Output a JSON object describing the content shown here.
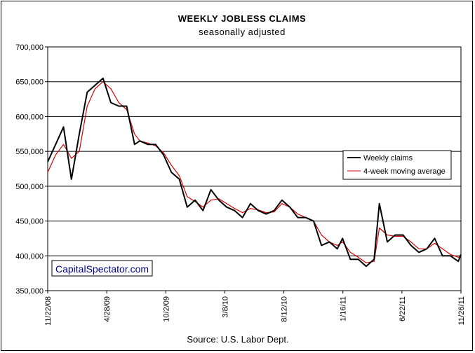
{
  "chart_data": {
    "type": "line",
    "title": "WEEKLY JOBLESS CLAIMS",
    "subtitle": "seasonally adjusted",
    "source": "Source: U.S. Labor Dept.",
    "watermark": "CapitalSpectator.com",
    "ylim": [
      350000,
      700000
    ],
    "y_ticks": [
      "350,000",
      "400,000",
      "450,000",
      "500,000",
      "550,000",
      "600,000",
      "650,000",
      "700,000"
    ],
    "y_tick_values": [
      350000,
      400000,
      450000,
      500000,
      550000,
      600000,
      650000,
      700000
    ],
    "x_range": [
      "2008-11-22",
      "2011-11-26"
    ],
    "x_tick_labels": [
      "11/22/08",
      "4/28/09",
      "10/2/09",
      "3/8/10",
      "8/12/10",
      "1/16/11",
      "6/22/11",
      "11/26/11"
    ],
    "x_tick_dates": [
      "2008-11-22",
      "2009-04-28",
      "2009-10-02",
      "2010-03-08",
      "2010-08-12",
      "2011-01-16",
      "2011-06-22",
      "2011-11-26"
    ],
    "grid": "horizontal",
    "legend_position": "right",
    "series": [
      {
        "name": "Weekly claims",
        "color": "#000000",
        "x": [
          "2008-11-22",
          "2008-12-13",
          "2009-01-03",
          "2009-01-24",
          "2009-02-14",
          "2009-03-07",
          "2009-03-28",
          "2009-04-18",
          "2009-05-09",
          "2009-05-30",
          "2009-06-20",
          "2009-07-11",
          "2009-07-25",
          "2009-08-15",
          "2009-09-05",
          "2009-09-26",
          "2009-10-17",
          "2009-11-07",
          "2009-11-28",
          "2009-12-19",
          "2010-01-09",
          "2010-01-30",
          "2010-02-20",
          "2010-03-13",
          "2010-04-03",
          "2010-04-24",
          "2010-05-15",
          "2010-06-05",
          "2010-06-26",
          "2010-07-17",
          "2010-08-07",
          "2010-08-28",
          "2010-09-18",
          "2010-10-09",
          "2010-10-30",
          "2010-11-20",
          "2010-12-11",
          "2011-01-01",
          "2011-01-15",
          "2011-02-05",
          "2011-02-26",
          "2011-03-19",
          "2011-04-09",
          "2011-04-23",
          "2011-05-14",
          "2011-06-04",
          "2011-06-25",
          "2011-07-16",
          "2011-08-06",
          "2011-08-27",
          "2011-09-17",
          "2011-10-08",
          "2011-10-29",
          "2011-11-19",
          "2011-11-26"
        ],
        "y": [
          535000,
          560000,
          585000,
          510000,
          575000,
          635000,
          645000,
          655000,
          620000,
          615000,
          615000,
          560000,
          565000,
          560000,
          560000,
          545000,
          520000,
          510000,
          470000,
          480000,
          465000,
          495000,
          480000,
          470000,
          465000,
          455000,
          475000,
          465000,
          460000,
          465000,
          480000,
          470000,
          455000,
          455000,
          450000,
          415000,
          420000,
          410000,
          425000,
          395000,
          395000,
          385000,
          395000,
          475000,
          420000,
          430000,
          430000,
          415000,
          405000,
          410000,
          425000,
          400000,
          400000,
          392000,
          402000
        ]
      },
      {
        "name": "4-week moving average",
        "color": "#d40000",
        "x": [
          "2008-11-22",
          "2008-12-13",
          "2009-01-03",
          "2009-01-24",
          "2009-02-14",
          "2009-03-07",
          "2009-03-28",
          "2009-04-18",
          "2009-05-09",
          "2009-05-30",
          "2009-06-20",
          "2009-07-11",
          "2009-07-25",
          "2009-08-15",
          "2009-09-05",
          "2009-09-26",
          "2009-10-17",
          "2009-11-07",
          "2009-11-28",
          "2009-12-19",
          "2010-01-09",
          "2010-01-30",
          "2010-02-20",
          "2010-03-13",
          "2010-04-03",
          "2010-04-24",
          "2010-05-15",
          "2010-06-05",
          "2010-06-26",
          "2010-07-17",
          "2010-08-07",
          "2010-08-28",
          "2010-09-18",
          "2010-10-09",
          "2010-10-30",
          "2010-11-20",
          "2010-12-11",
          "2011-01-01",
          "2011-01-15",
          "2011-02-05",
          "2011-02-26",
          "2011-03-19",
          "2011-04-09",
          "2011-04-23",
          "2011-05-14",
          "2011-06-04",
          "2011-06-25",
          "2011-07-16",
          "2011-08-06",
          "2011-08-27",
          "2011-09-17",
          "2011-10-08",
          "2011-10-29",
          "2011-11-19",
          "2011-11-26"
        ],
        "y": [
          520000,
          545000,
          560000,
          540000,
          550000,
          615000,
          640000,
          650000,
          640000,
          620000,
          610000,
          575000,
          565000,
          562000,
          558000,
          548000,
          530000,
          515000,
          485000,
          478000,
          470000,
          480000,
          482000,
          475000,
          468000,
          462000,
          468000,
          466000,
          462000,
          463000,
          475000,
          470000,
          460000,
          455000,
          450000,
          430000,
          420000,
          415000,
          420000,
          405000,
          398000,
          390000,
          392000,
          440000,
          430000,
          428000,
          428000,
          420000,
          410000,
          410000,
          418000,
          410000,
          402000,
          398000,
          400000
        ]
      }
    ]
  }
}
